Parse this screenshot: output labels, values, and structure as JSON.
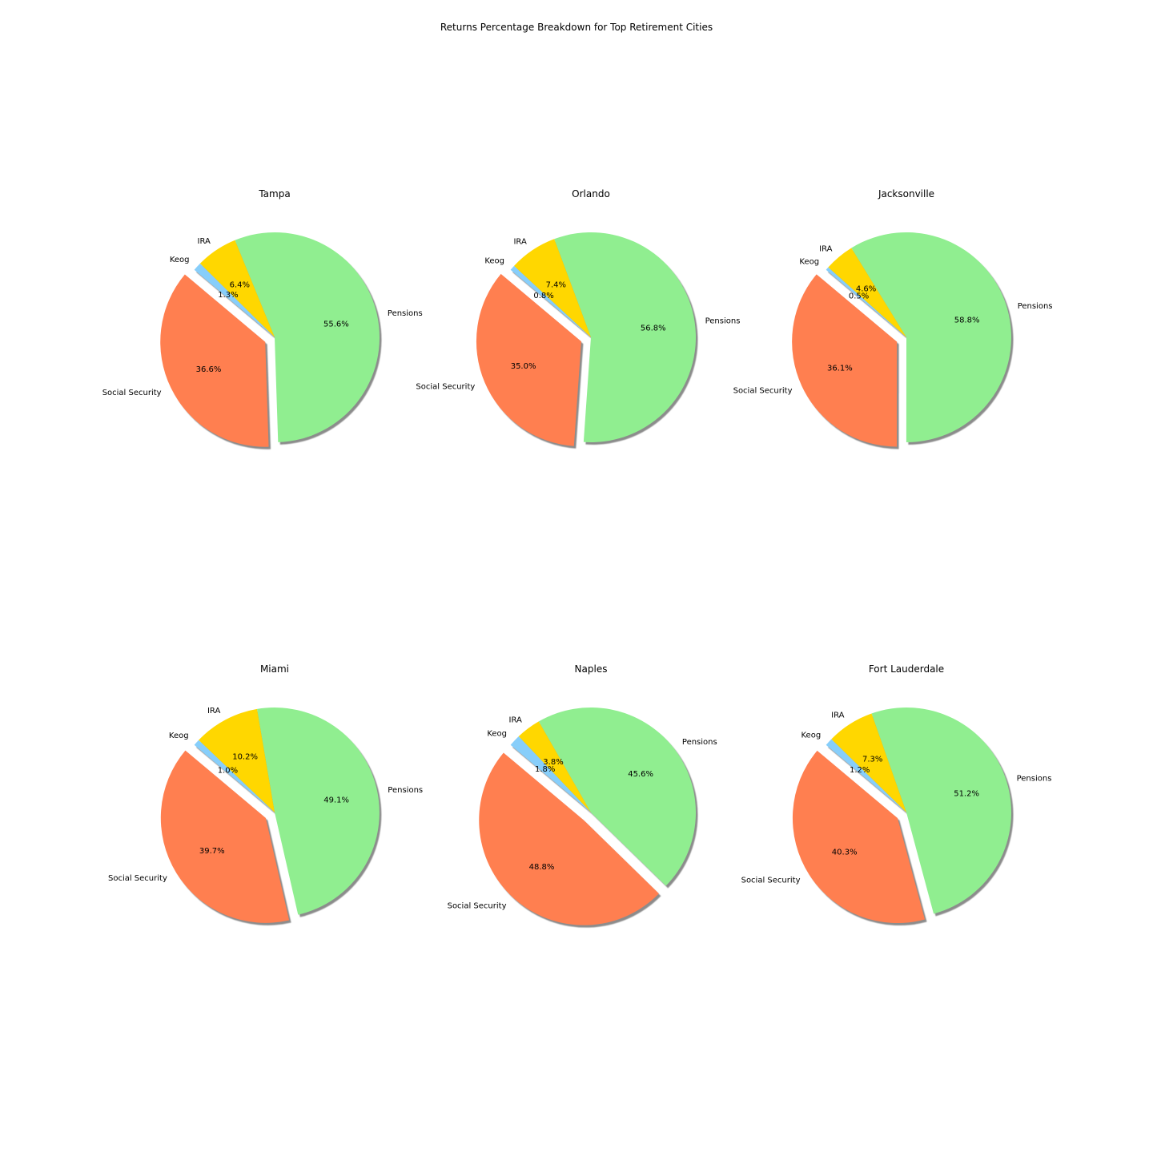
{
  "figure": {
    "title": "Returns Percentage Breakdown for Top Retirement Cities"
  },
  "chart_data": {
    "type": "pie",
    "title": "Returns Percentage Breakdown for Top Retirement Cities",
    "labels": [
      "Social Security",
      "Pensions",
      "IRA",
      "Keog"
    ],
    "colors": {
      "Social Security": "#ff7f50",
      "Pensions": "#90ee90",
      "IRA": "#ffd700",
      "Keog": "#87cefa"
    },
    "exploded_slice": "Social Security",
    "shadow": true,
    "pies": [
      {
        "city": "Tampa",
        "values": [
          36.6,
          55.6,
          6.4,
          1.3
        ],
        "value_labels": [
          "36.6%",
          "55.6%",
          "6.4%",
          "1.3%"
        ]
      },
      {
        "city": "Orlando",
        "values": [
          35.0,
          56.8,
          7.4,
          0.8
        ],
        "value_labels": [
          "35.0%",
          "56.8%",
          "7.4%",
          "0.8%"
        ]
      },
      {
        "city": "Jacksonville",
        "values": [
          36.1,
          58.8,
          4.6,
          0.5
        ],
        "value_labels": [
          "36.1%",
          "58.8%",
          "4.6%",
          "0.5%"
        ]
      },
      {
        "city": "Miami",
        "values": [
          39.7,
          49.1,
          10.2,
          1.0
        ],
        "value_labels": [
          "39.7%",
          "49.1%",
          "10.2%",
          "1.0%"
        ]
      },
      {
        "city": "Naples",
        "values": [
          48.8,
          45.6,
          3.8,
          1.8
        ],
        "value_labels": [
          "48.8%",
          "45.6%",
          "3.8%",
          "1.8%"
        ]
      },
      {
        "city": "Fort Lauderdale",
        "values": [
          40.3,
          51.2,
          7.3,
          1.2
        ],
        "value_labels": [
          "40.3%",
          "51.2%",
          "7.3%",
          "1.2%"
        ]
      }
    ]
  }
}
